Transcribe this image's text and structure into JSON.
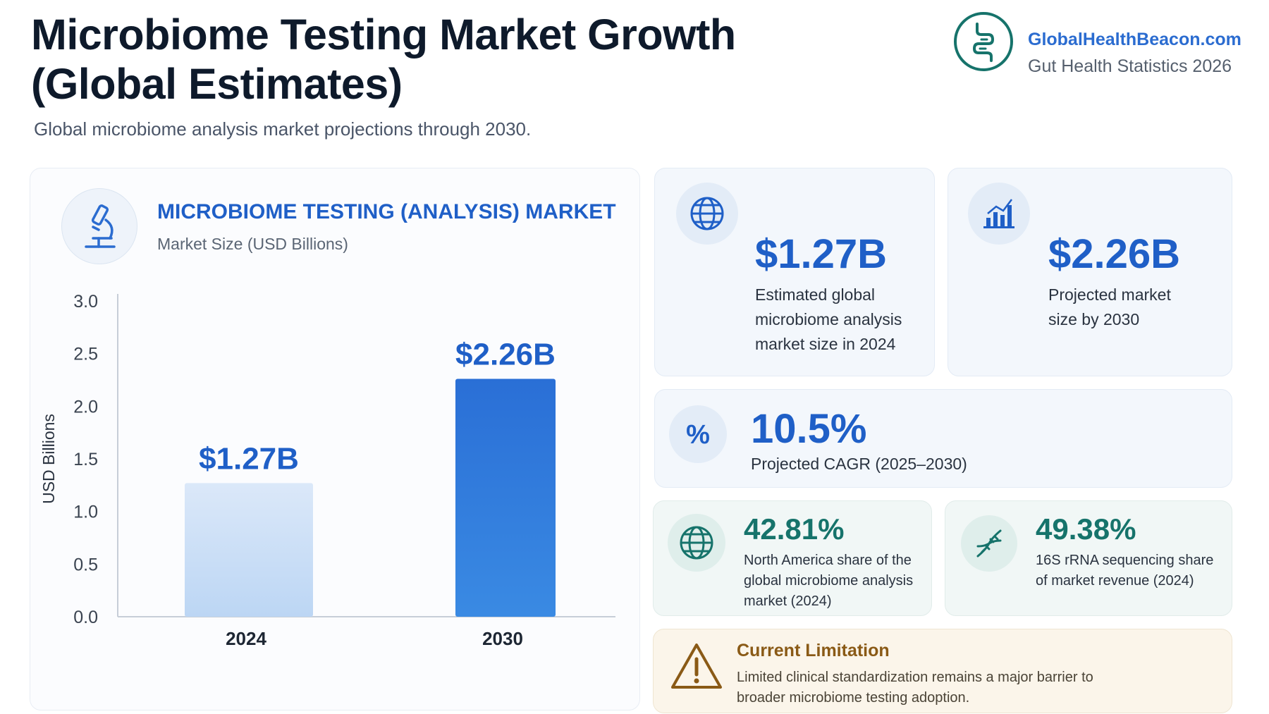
{
  "header": {
    "title": "Microbiome Testing Market Growth (Global Estimates)",
    "subtitle": "Global microbiome analysis market projections through 2030."
  },
  "brand": {
    "name": "GlobalHealthBeacon.com",
    "tagline": "Gut Health Statistics 2026",
    "logo_icon": "gut-icon",
    "accent": "#16736b"
  },
  "chart_panel": {
    "title": "MICROBIOME TESTING (ANALYSIS) MARKET",
    "subtitle": "Market Size (USD Billions)",
    "icon": "microscope-icon"
  },
  "chart_data": {
    "type": "bar",
    "title": "MICROBIOME TESTING (ANALYSIS) MARKET",
    "subtitle": "Market Size (USD Billions)",
    "categories": [
      "2024",
      "2030"
    ],
    "values": [
      1.27,
      2.26
    ],
    "data_labels": [
      "$1.27B",
      "$2.26B"
    ],
    "xlabel": "",
    "ylabel": "USD Billions",
    "ylim": [
      0,
      3.0
    ],
    "yticks": [
      "0.0",
      "0.5",
      "1.0",
      "1.5",
      "2.0",
      "2.5",
      "3.0"
    ],
    "grid": false,
    "legend": "none",
    "colors": [
      "#c9ddf6",
      "#2f79dc"
    ]
  },
  "stats": {
    "size_2024": {
      "value": "$1.27B",
      "label": "Estimated global microbiome analysis market size in 2024",
      "icon": "globe-icon"
    },
    "size_2030": {
      "value": "$2.26B",
      "label": "Projected market size by 2030",
      "icon": "bar-chart-icon"
    },
    "cagr": {
      "value": "10.5%",
      "label": "Projected CAGR (2025–2030)",
      "icon": "percent-icon"
    },
    "north_america": {
      "value": "42.81%",
      "label": "North America share of the global microbiome analysis market (2024)",
      "icon": "globe-icon"
    },
    "rrna": {
      "value": "49.38%",
      "label": "16S rRNA sequencing share of market revenue (2024)",
      "icon": "dna-icon"
    }
  },
  "limitation": {
    "title": "Current Limitation",
    "text": "Limited clinical standardization remains a major barrier to broader microbiome testing adoption.",
    "icon": "warning-icon"
  }
}
